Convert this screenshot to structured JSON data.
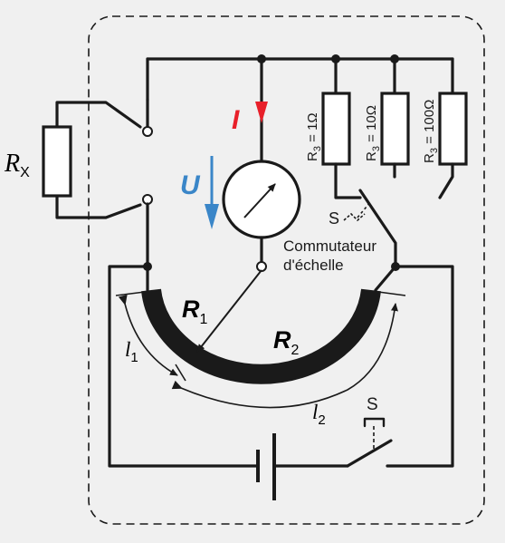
{
  "labels": {
    "rx_main": "R",
    "rx_sub": "X",
    "current": "I",
    "voltage": "U",
    "r1_main": "R",
    "r1_sub": "1",
    "r2_main": "R",
    "r2_sub": "2",
    "l1_main": "l",
    "l1_sub": "1",
    "l2_main": "l",
    "l2_sub": "2",
    "switch_range": "S",
    "switch_main": "S",
    "range_switch_line1": "Commutateur",
    "range_switch_line2": "d'échelle"
  },
  "range_resistors": [
    {
      "main": "R",
      "sub": "3",
      "value": "= 1Ω"
    },
    {
      "main": "R",
      "sub": "3",
      "value": "= 10Ω"
    },
    {
      "main": "R",
      "sub": "3",
      "value": "= 100Ω"
    }
  ],
  "colors": {
    "background": "#f0f0f0",
    "ink": "#1a1a1a",
    "current_arrow": "#e8202a",
    "voltage_arrow": "#3a86c8",
    "slidewire": "#1a1a1a"
  },
  "icons": [
    "galvanometer-icon",
    "battery-icon",
    "switch-icon"
  ]
}
